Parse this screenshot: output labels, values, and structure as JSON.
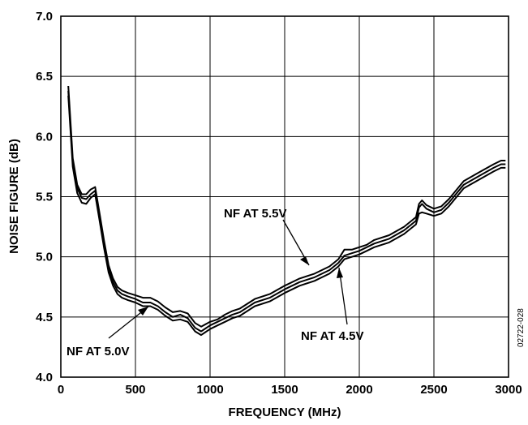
{
  "chart_data": {
    "type": "line",
    "xlabel": "FREQUENCY (MHz)",
    "ylabel": "NOISE FIGURE (dB)",
    "xlim": [
      0,
      3000
    ],
    "ylim": [
      4.0,
      7.0
    ],
    "x_ticks": [
      "0",
      "500",
      "1000",
      "1500",
      "2000",
      "2500",
      "3000"
    ],
    "y_ticks": [
      "4.0",
      "4.5",
      "5.0",
      "5.5",
      "6.0",
      "6.5",
      "7.0"
    ],
    "grid": true,
    "series": [
      {
        "name": "NF AT 5.5V",
        "x": [
          50,
          80,
          110,
          140,
          170,
          200,
          230,
          260,
          290,
          320,
          350,
          380,
          410,
          450,
          500,
          550,
          600,
          650,
          700,
          750,
          800,
          850,
          900,
          940,
          1000,
          1050,
          1100,
          1150,
          1200,
          1300,
          1400,
          1500,
          1600,
          1700,
          1800,
          1860,
          1900,
          1950,
          2000,
          2050,
          2100,
          2200,
          2300,
          2380,
          2400,
          2420,
          2450,
          2500,
          2550,
          2600,
          2700,
          2800,
          2900,
          2950,
          2980
        ],
        "y": [
          6.42,
          5.82,
          5.6,
          5.52,
          5.52,
          5.56,
          5.58,
          5.36,
          5.13,
          4.93,
          4.82,
          4.75,
          4.72,
          4.7,
          4.68,
          4.66,
          4.66,
          4.63,
          4.58,
          4.54,
          4.55,
          4.53,
          4.45,
          4.42,
          4.46,
          4.48,
          4.52,
          4.55,
          4.57,
          4.65,
          4.69,
          4.76,
          4.82,
          4.86,
          4.92,
          4.98,
          5.06,
          5.06,
          5.08,
          5.1,
          5.14,
          5.18,
          5.25,
          5.33,
          5.44,
          5.47,
          5.43,
          5.4,
          5.42,
          5.48,
          5.63,
          5.7,
          5.77,
          5.8,
          5.8
        ]
      },
      {
        "name": "NF AT 5.0V",
        "x": [
          50,
          80,
          110,
          140,
          170,
          200,
          230,
          260,
          290,
          320,
          350,
          380,
          410,
          450,
          500,
          550,
          600,
          650,
          700,
          750,
          800,
          850,
          900,
          940,
          1000,
          1050,
          1100,
          1150,
          1200,
          1300,
          1400,
          1500,
          1600,
          1700,
          1800,
          1860,
          1900,
          1950,
          2000,
          2050,
          2100,
          2200,
          2300,
          2380,
          2400,
          2420,
          2450,
          2500,
          2550,
          2600,
          2700,
          2800,
          2900,
          2950,
          2980
        ],
        "y": [
          6.38,
          5.78,
          5.57,
          5.49,
          5.48,
          5.52,
          5.55,
          5.33,
          5.1,
          4.9,
          4.79,
          4.72,
          4.69,
          4.67,
          4.65,
          4.62,
          4.62,
          4.59,
          4.54,
          4.5,
          4.52,
          4.49,
          4.41,
          4.38,
          4.43,
          4.46,
          4.49,
          4.52,
          4.54,
          4.62,
          4.66,
          4.73,
          4.79,
          4.83,
          4.89,
          4.95,
          5.01,
          5.03,
          5.05,
          5.08,
          5.11,
          5.15,
          5.22,
          5.3,
          5.41,
          5.44,
          5.4,
          5.37,
          5.39,
          5.45,
          5.6,
          5.67,
          5.74,
          5.77,
          5.77
        ]
      },
      {
        "name": "NF AT 4.5V",
        "x": [
          50,
          80,
          110,
          140,
          170,
          200,
          230,
          260,
          290,
          320,
          350,
          380,
          410,
          450,
          500,
          550,
          600,
          650,
          700,
          750,
          800,
          850,
          900,
          940,
          1000,
          1050,
          1100,
          1150,
          1200,
          1300,
          1400,
          1500,
          1600,
          1700,
          1800,
          1860,
          1900,
          1950,
          2000,
          2050,
          2100,
          2200,
          2300,
          2380,
          2400,
          2420,
          2450,
          2500,
          2550,
          2600,
          2700,
          2800,
          2900,
          2950,
          2980
        ],
        "y": [
          6.34,
          5.75,
          5.53,
          5.45,
          5.44,
          5.49,
          5.52,
          5.3,
          5.07,
          4.87,
          4.76,
          4.69,
          4.66,
          4.64,
          4.62,
          4.59,
          4.59,
          4.56,
          4.51,
          4.47,
          4.48,
          4.46,
          4.38,
          4.35,
          4.4,
          4.43,
          4.46,
          4.49,
          4.51,
          4.59,
          4.63,
          4.7,
          4.76,
          4.8,
          4.86,
          4.92,
          4.98,
          5.0,
          5.02,
          5.05,
          5.08,
          5.12,
          5.19,
          5.27,
          5.36,
          5.37,
          5.36,
          5.34,
          5.36,
          5.42,
          5.57,
          5.64,
          5.71,
          5.74,
          5.74
        ]
      }
    ],
    "annotations": [
      {
        "text": "NF AT 5.5V",
        "series": "NF AT 5.5V"
      },
      {
        "text": "NF AT 5.0V",
        "series": "NF AT 5.0V"
      },
      {
        "text": "NF AT 4.5V",
        "series": "NF AT 4.5V"
      }
    ],
    "figure_id": "02722-028"
  }
}
